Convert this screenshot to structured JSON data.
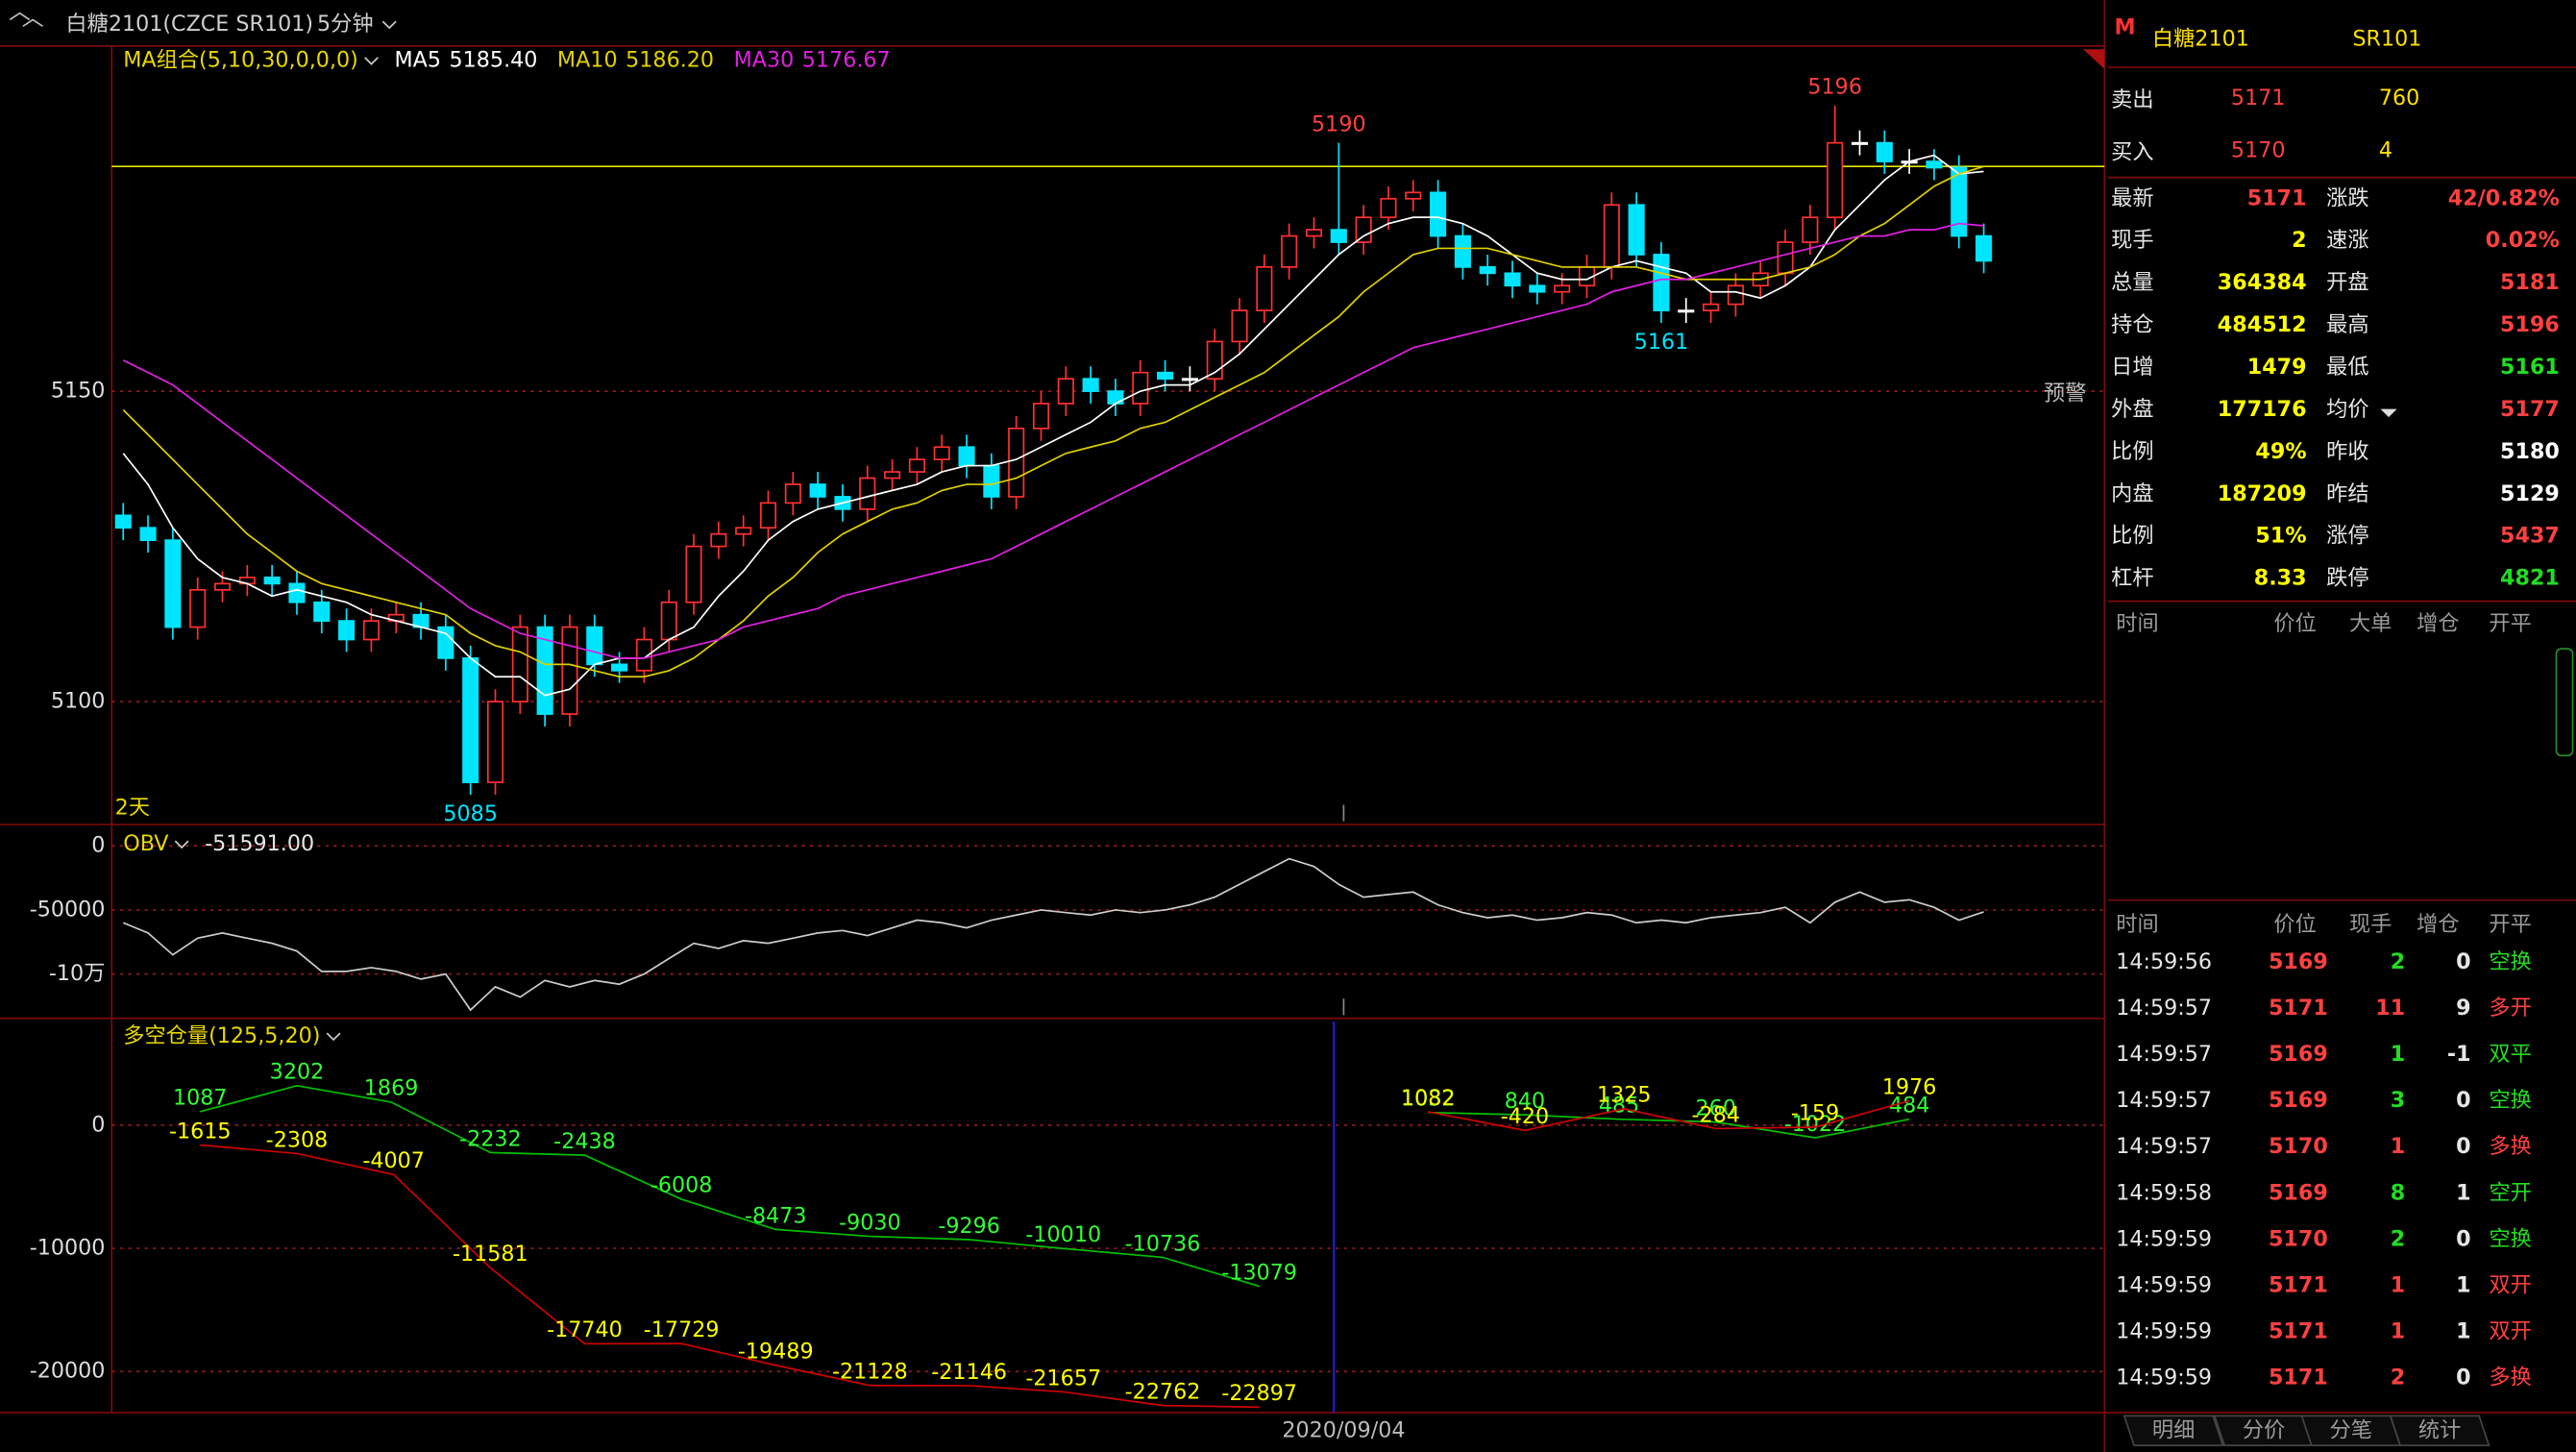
{
  "header": {
    "symbol": "白糖2101(CZCE SR101)",
    "period": "5分钟"
  },
  "chart_data": [
    {
      "type": "candlestick",
      "title": "MA组合(5,10,30,0,0,0)",
      "ylim": [
        5080.2,
        5205.6
      ],
      "yticks": [
        5150,
        5100
      ],
      "grid": true,
      "up_color": "#ff3030",
      "down_color": "#00e5ff",
      "flat_color": "#ffffff",
      "ref_line": 5186.2,
      "ref_line_color": "#e8e800",
      "range_label": "2天",
      "alert_label": "预警",
      "opens": [
        5130,
        5128,
        5126,
        5112,
        5118,
        5119,
        5120,
        5119,
        5116,
        5113,
        5110,
        5113,
        5114,
        5112,
        5107,
        5087,
        5100,
        5112,
        5098,
        5112,
        5106,
        5105,
        5110,
        5116,
        5125,
        5127,
        5128,
        5132,
        5135,
        5133,
        5131,
        5136,
        5137,
        5139,
        5141,
        5138,
        5133,
        5144,
        5148,
        5152,
        5150,
        5148,
        5153,
        5152,
        5152,
        5158,
        5163,
        5170,
        5175,
        5176,
        5174,
        5178,
        5181,
        5182,
        5175,
        5170,
        5169,
        5167,
        5166,
        5167,
        5170,
        5180,
        5172,
        5163,
        5163,
        5164,
        5167,
        5169,
        5174,
        5178,
        5190,
        5190,
        5187,
        5187,
        5186,
        5175
      ],
      "highs": [
        5132,
        5130,
        5128,
        5120,
        5121,
        5122,
        5122,
        5121,
        5118,
        5115,
        5115,
        5116,
        5116,
        5114,
        5109,
        5102,
        5114,
        5114,
        5114,
        5114,
        5108,
        5112,
        5118,
        5127,
        5129,
        5130,
        5134,
        5137,
        5137,
        5135,
        5138,
        5139,
        5141,
        5143,
        5143,
        5140,
        5146,
        5150,
        5154,
        5154,
        5152,
        5155,
        5155,
        5154,
        5160,
        5165,
        5172,
        5177,
        5178,
        5190,
        5180,
        5183,
        5184,
        5184,
        5177,
        5172,
        5171,
        5169,
        5169,
        5172,
        5182,
        5182,
        5174,
        5165,
        5166,
        5169,
        5171,
        5176,
        5180,
        5196,
        5192,
        5192,
        5189,
        5189,
        5188,
        5177
      ],
      "lows": [
        5126,
        5124,
        5110,
        5110,
        5116,
        5117,
        5117,
        5114,
        5111,
        5108,
        5108,
        5111,
        5110,
        5105,
        5085,
        5085,
        5098,
        5096,
        5096,
        5104,
        5103,
        5103,
        5108,
        5114,
        5123,
        5125,
        5126,
        5130,
        5131,
        5129,
        5129,
        5134,
        5135,
        5137,
        5136,
        5131,
        5131,
        5142,
        5146,
        5148,
        5146,
        5146,
        5150,
        5150,
        5150,
        5156,
        5161,
        5168,
        5173,
        5172,
        5172,
        5176,
        5179,
        5173,
        5168,
        5167,
        5165,
        5164,
        5164,
        5165,
        5168,
        5170,
        5161,
        5161,
        5161,
        5162,
        5165,
        5167,
        5172,
        5176,
        5188,
        5185,
        5185,
        5184,
        5173,
        5169
      ],
      "closes": [
        5128,
        5126,
        5112,
        5118,
        5119,
        5120,
        5119,
        5116,
        5113,
        5110,
        5113,
        5114,
        5112,
        5107,
        5087,
        5100,
        5112,
        5098,
        5112,
        5106,
        5105,
        5110,
        5116,
        5125,
        5127,
        5128,
        5132,
        5135,
        5133,
        5131,
        5136,
        5137,
        5139,
        5141,
        5138,
        5133,
        5144,
        5148,
        5152,
        5150,
        5148,
        5153,
        5152,
        5152,
        5158,
        5163,
        5170,
        5175,
        5176,
        5174,
        5178,
        5181,
        5182,
        5175,
        5170,
        5169,
        5167,
        5166,
        5167,
        5170,
        5180,
        5172,
        5163,
        5163,
        5164,
        5167,
        5169,
        5174,
        5178,
        5190,
        5190,
        5187,
        5187,
        5186,
        5175,
        5171
      ],
      "series": [
        {
          "name": "MA5",
          "color": "#ffffff",
          "current": "5185.40",
          "values": [
            5140,
            5135,
            5128,
            5123,
            5120,
            5119,
            5117,
            5118,
            5117,
            5116,
            5114,
            5113,
            5112,
            5111,
            5107,
            5104,
            5104,
            5101,
            5102,
            5106,
            5107,
            5107,
            5110,
            5112,
            5117,
            5121,
            5126,
            5129,
            5131,
            5132,
            5133,
            5134,
            5135,
            5137,
            5138,
            5138,
            5139,
            5141,
            5143,
            5145,
            5148,
            5150,
            5151,
            5151,
            5153,
            5156,
            5160,
            5164,
            5168,
            5172,
            5175,
            5177,
            5178,
            5178,
            5177,
            5175,
            5172,
            5169,
            5168,
            5168,
            5170,
            5171,
            5170,
            5169,
            5166,
            5166,
            5165,
            5167,
            5170,
            5176,
            5180,
            5184,
            5187,
            5188,
            5185,
            5185.4
          ]
        },
        {
          "name": "MA10",
          "color": "#e0d000",
          "current": "5186.20",
          "values": [
            5147,
            5143,
            5139,
            5135,
            5131,
            5127,
            5124,
            5121,
            5119,
            5118,
            5117,
            5116,
            5115,
            5114,
            5111,
            5109,
            5108,
            5106,
            5106,
            5105,
            5104,
            5104,
            5105,
            5107,
            5110,
            5113,
            5117,
            5120,
            5124,
            5127,
            5129,
            5131,
            5132,
            5134,
            5135,
            5135,
            5136,
            5138,
            5140,
            5141,
            5142,
            5144,
            5145,
            5147,
            5149,
            5151,
            5153,
            5156,
            5159,
            5162,
            5166,
            5169,
            5172,
            5173,
            5173,
            5173,
            5172,
            5171,
            5170,
            5170,
            5170,
            5170,
            5169,
            5168,
            5168,
            5168,
            5168,
            5169,
            5170,
            5172,
            5175,
            5177,
            5180,
            5183,
            5185,
            5186.2
          ]
        },
        {
          "name": "MA30",
          "color": "#e020e0",
          "current": "5176.67",
          "values": [
            5155,
            5153,
            5151,
            5148,
            5145,
            5142,
            5139,
            5136,
            5133,
            5130,
            5127,
            5124,
            5121,
            5118,
            5115,
            5113,
            5111,
            5110,
            5109,
            5108,
            5107,
            5107,
            5108,
            5109,
            5110,
            5112,
            5113,
            5114,
            5115,
            5117,
            5118,
            5119,
            5120,
            5121,
            5122,
            5123,
            5125,
            5127,
            5129,
            5131,
            5133,
            5135,
            5137,
            5139,
            5141,
            5143,
            5145,
            5147,
            5149,
            5151,
            5153,
            5155,
            5157,
            5158,
            5159,
            5160,
            5161,
            5162,
            5163,
            5164,
            5166,
            5167,
            5168,
            5168,
            5169,
            5170,
            5171,
            5172,
            5173,
            5174,
            5175,
            5175,
            5176,
            5176,
            5177,
            5176.67
          ]
        }
      ],
      "price_labels": [
        {
          "x": 49,
          "value": 5190,
          "color": "#ff4040"
        },
        {
          "x": 69,
          "value": 5196,
          "color": "#ff4040"
        },
        {
          "x": 14,
          "value": 5085,
          "color": "#00e5ff"
        },
        {
          "x": 62,
          "value": 5161,
          "color": "#00e5ff"
        }
      ]
    },
    {
      "type": "line",
      "title": "OBV",
      "current": "-51591.00",
      "ylim": [
        -134600,
        12800
      ],
      "yticks": [
        0,
        -50000,
        {
          "value": -100000,
          "label": "-10万"
        }
      ],
      "grid": true,
      "series": [
        {
          "color": "#cccccc",
          "values": [
            -60000,
            -68000,
            -85000,
            -72000,
            -68000,
            -72000,
            -76000,
            -82000,
            -98000,
            -98000,
            -95000,
            -98000,
            -104000,
            -100000,
            -128000,
            -110000,
            -118000,
            -105000,
            -110000,
            -105000,
            -108000,
            -100000,
            -88000,
            -76000,
            -80000,
            -74000,
            -76000,
            -72000,
            -68000,
            -66000,
            -70000,
            -64000,
            -58000,
            -60000,
            -64000,
            -58000,
            -54000,
            -50000,
            -52000,
            -54000,
            -50000,
            -52000,
            -50000,
            -46000,
            -40000,
            -30000,
            -20000,
            -10000,
            -16000,
            -30000,
            -40000,
            -38000,
            -36000,
            -46000,
            -52000,
            -56000,
            -54000,
            -58000,
            -56000,
            -52000,
            -54000,
            -60000,
            -58000,
            -60000,
            -56000,
            -54000,
            -52000,
            -48000,
            -60000,
            -44000,
            -36000,
            -44000,
            -42000,
            -48000,
            -58000,
            -51591
          ]
        }
      ]
    },
    {
      "type": "line",
      "title": "多空仓量(125,5,20)",
      "ylim": [
        -23333,
        8400
      ],
      "yticks": [
        0,
        -10000,
        -20000
      ],
      "grid": true,
      "data_labels": true,
      "day_boundary": {
        "x": 48.8,
        "label": "2020/09/04",
        "color": "#2020ff"
      },
      "series": [
        {
          "color": "#00c000",
          "label_color": "#33ff33",
          "x": [
            3.1,
            7,
            10.8,
            14.8,
            18.6,
            22.5,
            26.3,
            30.1,
            34.1,
            37.9,
            41.9,
            45.8,
            null,
            52.6,
            56.5,
            60.3,
            64.2,
            68.2,
            72
          ],
          "values": [
            1087,
            3202,
            1869,
            -2232,
            -2438,
            -6008,
            -8473,
            -9030,
            -9296,
            -10010,
            -10736,
            -13079,
            null,
            1032,
            840,
            485,
            260,
            -1022,
            484
          ]
        },
        {
          "color": "#d00000",
          "label_color": "#ffff00",
          "x": [
            3.1,
            7,
            10.9,
            14.8,
            18.6,
            22.5,
            26.3,
            30.1,
            34.1,
            37.9,
            41.9,
            45.8,
            null,
            52.6,
            56.5,
            60.5,
            64.2,
            68.2,
            72
          ],
          "values": [
            -1615,
            -2308,
            -4007,
            -11581,
            -17740,
            -17729,
            -19489,
            -21128,
            -21146,
            -21657,
            -22762,
            -22897,
            null,
            1082,
            -420,
            1325,
            -284,
            -159,
            1976
          ]
        }
      ]
    }
  ],
  "quote": {
    "badge": "M",
    "name": "白糖2101",
    "code": "SR101",
    "ask": {
      "label": "卖出",
      "price": 5171,
      "volume": 760
    },
    "bid": {
      "label": "买入",
      "price": 5170,
      "volume": 4
    },
    "stats_left": [
      {
        "label": "最新",
        "value": 5171,
        "color": "#ff4040"
      },
      {
        "label": "现手",
        "value": 2,
        "color": "#ffff00"
      },
      {
        "label": "总量",
        "value": 364384,
        "color": "#ffff00"
      },
      {
        "label": "持仓",
        "value": 484512,
        "color": "#ffff00"
      },
      {
        "label": "日增",
        "value": 1479,
        "color": "#ffff00"
      },
      {
        "label": "外盘",
        "value": 177176,
        "color": "#ffff00"
      },
      {
        "label": "比例",
        "value": "49%",
        "color": "#ffff00"
      },
      {
        "label": "内盘",
        "value": 187209,
        "color": "#ffff00"
      },
      {
        "label": "比例",
        "value": "51%",
        "color": "#ffff00"
      },
      {
        "label": "杠杆",
        "value": 8.33,
        "color": "#ffff00"
      }
    ],
    "stats_right": [
      {
        "label": "涨跌",
        "value": "42/0.82%",
        "color": "#ff4040"
      },
      {
        "label": "速涨",
        "value": "0.02%",
        "color": "#ff4040"
      },
      {
        "label": "开盘",
        "value": 5181,
        "color": "#ff4040"
      },
      {
        "label": "最高",
        "value": 5196,
        "color": "#ff4040"
      },
      {
        "label": "最低",
        "value": 5161,
        "color": "#22dd22"
      },
      {
        "label": "均价",
        "value": 5177,
        "color": "#ff4040"
      },
      {
        "label": "昨收",
        "value": 5180,
        "color": "#ffffff"
      },
      {
        "label": "昨结",
        "value": 5129,
        "color": "#ffffff"
      },
      {
        "label": "涨停",
        "value": 5437,
        "color": "#ff4040"
      },
      {
        "label": "跌停",
        "value": 4821,
        "color": "#22dd22"
      }
    ]
  },
  "big_orders": {
    "headers": [
      "时间",
      "价位",
      "大单",
      "增仓",
      "开平"
    ]
  },
  "ticks": {
    "headers": [
      "时间",
      "价位",
      "现手",
      "增仓",
      "开平"
    ],
    "price_color": "#ff4040",
    "rows": [
      {
        "time": "14:59:56",
        "price": 5169,
        "volume": 2,
        "oi_change": 0,
        "type": "空换",
        "color": "#22dd22"
      },
      {
        "time": "14:59:57",
        "price": 5171,
        "volume": 11,
        "oi_change": 9,
        "type": "多开",
        "color": "#ff4040"
      },
      {
        "time": "14:59:57",
        "price": 5169,
        "volume": 1,
        "oi_change": -1,
        "type": "双平",
        "color": "#22dd22"
      },
      {
        "time": "14:59:57",
        "price": 5169,
        "volume": 3,
        "oi_change": 0,
        "type": "空换",
        "color": "#22dd22"
      },
      {
        "time": "14:59:57",
        "price": 5170,
        "volume": 1,
        "oi_change": 0,
        "type": "多换",
        "color": "#ff4040"
      },
      {
        "time": "14:59:58",
        "price": 5169,
        "volume": 8,
        "oi_change": 1,
        "type": "空开",
        "color": "#22dd22"
      },
      {
        "time": "14:59:59",
        "price": 5170,
        "volume": 2,
        "oi_change": 0,
        "type": "空换",
        "color": "#22dd22"
      },
      {
        "time": "14:59:59",
        "price": 5171,
        "volume": 1,
        "oi_change": 1,
        "type": "双开",
        "color": "#ff4040"
      },
      {
        "time": "14:59:59",
        "price": 5171,
        "volume": 1,
        "oi_change": 1,
        "type": "双开",
        "color": "#ff4040"
      },
      {
        "time": "14:59:59",
        "price": 5171,
        "volume": 2,
        "oi_change": 0,
        "type": "多换",
        "color": "#ff4040"
      }
    ]
  },
  "tabs": [
    "明细",
    "分价",
    "分笔",
    "统计"
  ]
}
